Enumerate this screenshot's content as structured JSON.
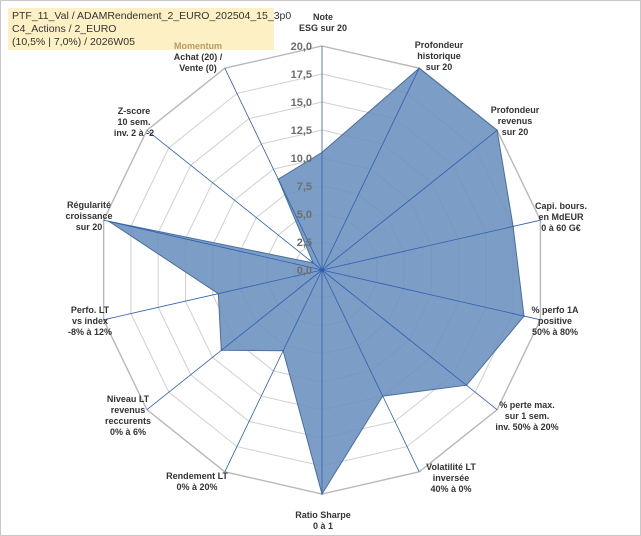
{
  "info": {
    "line1": "PTF_11_Val / ADAMRendement_2_EURO_202504_15_3p0",
    "line2": "C4_Actions / 2_EURO",
    "line3": "(10,5% | 7,0%) / 2026W05"
  },
  "colors": {
    "fill": "#6a8fbd",
    "stroke": "#4a6f9f",
    "grid": "#d0d0d0",
    "spoke": "#2e5fb3"
  },
  "chart_data": {
    "type": "radar",
    "title": "",
    "rlim": [
      0,
      20
    ],
    "r_ticks": [
      "0,0",
      "2,5",
      "5,0",
      "7,5",
      "10,0",
      "12,5",
      "15,0",
      "17,5",
      "20,0"
    ],
    "tick_values": [
      0,
      2.5,
      5,
      7.5,
      10,
      12.5,
      15,
      17.5,
      20
    ],
    "axes": [
      {
        "lines": [
          "Note",
          "ESG sur 20"
        ]
      },
      {
        "lines": [
          "Profondeur",
          "historique",
          "sur 20"
        ]
      },
      {
        "lines": [
          "Profondeur",
          "revenus",
          "sur 20"
        ]
      },
      {
        "lines": [
          "Capi. bours.",
          "en MdEUR",
          "0 à 60 G€"
        ]
      },
      {
        "lines": [
          "% perfo 1A",
          "positive",
          "50% à 80%"
        ]
      },
      {
        "lines": [
          "% perte max.",
          "sur 1 sem.",
          "inv. 50% à 20%"
        ]
      },
      {
        "lines": [
          "Volatilité LT",
          "inversée",
          "40% à 0%"
        ]
      },
      {
        "lines": [
          "Ratio Sharpe",
          "0 à 1"
        ]
      },
      {
        "lines": [
          "Rendement LT",
          "0% à 20%"
        ]
      },
      {
        "lines": [
          "Niveau LT",
          "revenus",
          "reccurents",
          "0% à 6%"
        ]
      },
      {
        "lines": [
          "Perfo. LT",
          "vs index",
          "-8% à 12%"
        ]
      },
      {
        "lines": [
          "Régularité",
          "croissance",
          "sur 20"
        ]
      },
      {
        "lines": [
          "Z-score",
          "10 sem.",
          "inv. 2 à -2"
        ]
      },
      {
        "lines": [
          "Momentum",
          "Achat (20) /",
          "Vente (0)"
        ]
      }
    ],
    "series": [
      {
        "name": "PTF_11_Val",
        "values": [
          10.5,
          20,
          20,
          17.5,
          18.5,
          16.5,
          12.5,
          20,
          8.0,
          11.5,
          9.5,
          19.5,
          1.0,
          9.0
        ]
      }
    ]
  }
}
